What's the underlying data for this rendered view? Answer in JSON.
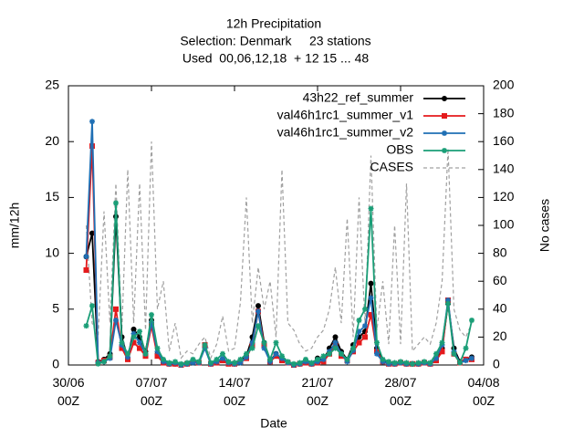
{
  "chart_data": {
    "type": "line",
    "title": "12h Precipitation",
    "subtitle": [
      "Selection: Denmark     23 stations",
      "Used  00,06,12,18  + 12 15 ... 48"
    ],
    "xlabel": "Date",
    "ylabel": "mm/12h",
    "y2label": "No cases",
    "xlim": [
      "30/06 00Z",
      "04/08 00Z"
    ],
    "xticks": [
      "30/06 00Z",
      "07/07 00Z",
      "14/07 00Z",
      "21/07 00Z",
      "28/07 00Z",
      "04/08 00Z"
    ],
    "ylim": [
      0,
      25
    ],
    "yticks": [
      0,
      5,
      10,
      15,
      20,
      25
    ],
    "y2lim": [
      0,
      200
    ],
    "y2ticks": [
      0,
      20,
      40,
      60,
      80,
      100,
      120,
      140,
      160,
      180,
      200
    ],
    "grid": false,
    "legend": "top-right",
    "x": [
      "30/06 00Z",
      "30/06 12Z",
      "01/07 00Z",
      "01/07 12Z",
      "02/07 00Z",
      "02/07 12Z",
      "03/07 00Z",
      "03/07 12Z",
      "04/07 00Z",
      "04/07 12Z",
      "05/07 00Z",
      "05/07 12Z",
      "06/07 00Z",
      "06/07 12Z",
      "07/07 00Z",
      "07/07 12Z",
      "08/07 00Z",
      "08/07 12Z",
      "09/07 00Z",
      "09/07 12Z",
      "10/07 00Z",
      "10/07 12Z",
      "11/07 00Z",
      "11/07 12Z",
      "12/07 00Z",
      "12/07 12Z",
      "13/07 00Z",
      "13/07 12Z",
      "14/07 00Z",
      "14/07 12Z",
      "15/07 00Z",
      "15/07 12Z",
      "16/07 00Z",
      "16/07 12Z",
      "17/07 00Z",
      "17/07 12Z",
      "18/07 00Z",
      "18/07 12Z",
      "19/07 00Z",
      "19/07 12Z",
      "20/07 00Z",
      "20/07 12Z",
      "21/07 00Z",
      "21/07 12Z",
      "22/07 00Z",
      "22/07 12Z",
      "23/07 00Z",
      "23/07 12Z",
      "24/07 00Z",
      "24/07 12Z",
      "25/07 00Z",
      "25/07 12Z",
      "26/07 00Z",
      "26/07 12Z",
      "27/07 00Z",
      "27/07 12Z",
      "28/07 00Z",
      "28/07 12Z",
      "29/07 00Z",
      "29/07 12Z",
      "30/07 00Z",
      "30/07 12Z",
      "31/07 00Z",
      "31/07 12Z",
      "01/08 00Z",
      "01/08 12Z",
      "02/08 00Z",
      "02/08 12Z",
      "03/08 00Z",
      "03/08 12Z"
    ],
    "series": [
      {
        "name": "43h22_ref_summer",
        "color": "#000000",
        "marker": "circle",
        "values": [
          null,
          null,
          null,
          9.7,
          11.8,
          0.3,
          0.5,
          1,
          13.3,
          2.5,
          0.6,
          3.2,
          2.5,
          1.2,
          4,
          1,
          0.3,
          0.1,
          0.1,
          0,
          0.1,
          0.2,
          0.2,
          1.6,
          0.1,
          0.2,
          0.5,
          0.2,
          0.1,
          0.3,
          0.8,
          2.5,
          5.3,
          2,
          0.4,
          1,
          0.5,
          0.2,
          0,
          0.1,
          0.3,
          0.1,
          0.6,
          0.4,
          1.5,
          2.5,
          1.2,
          0.5,
          1.8,
          2.5,
          3,
          7.3,
          1.5,
          0.4,
          0.2,
          0.1,
          0.2,
          0.1,
          0.1,
          0.1,
          0.2,
          0.1,
          0.5,
          1.5,
          5.5,
          1.5,
          0.3,
          0.5,
          0.7,
          null
        ]
      },
      {
        "name": "val46h1rc1_summer_v1",
        "color": "#e41a1c",
        "marker": "square",
        "values": [
          null,
          null,
          null,
          8.5,
          19.6,
          0.2,
          0.4,
          0.7,
          5,
          1.5,
          0.5,
          2,
          1.5,
          0.8,
          3.5,
          0.8,
          0.2,
          0.1,
          0.1,
          0,
          0.1,
          0.3,
          0.2,
          1.8,
          0.1,
          0.2,
          0.4,
          0.1,
          0.1,
          0.3,
          0.6,
          1.8,
          4.8,
          1.8,
          0.3,
          0.8,
          0.4,
          0.2,
          0,
          0.1,
          0.2,
          0.1,
          0.2,
          0.3,
          1,
          1.8,
          0.8,
          0.4,
          1.2,
          2,
          2.5,
          4.5,
          1.2,
          0.3,
          0.1,
          0.1,
          0.2,
          0.1,
          0.1,
          0.1,
          0.2,
          0.1,
          0.4,
          1.2,
          5.8,
          1,
          0.2,
          0.5,
          0.5,
          null
        ]
      },
      {
        "name": "val46h1rc1_summer_v2",
        "color": "#1f6fb4",
        "marker": "star",
        "values": [
          null,
          null,
          null,
          9.7,
          21.8,
          0.2,
          0.3,
          0.6,
          4,
          1.8,
          0.7,
          2.8,
          2,
          1,
          3.8,
          1.2,
          0.3,
          0.1,
          0.2,
          0,
          0.1,
          0.2,
          0.2,
          1.5,
          0.1,
          0.3,
          0.6,
          0.2,
          0.1,
          0.2,
          0.7,
          2,
          4.8,
          1.5,
          0.3,
          1,
          0.6,
          0.2,
          0,
          0.1,
          0.3,
          0.1,
          0.3,
          0.5,
          1.2,
          2,
          1,
          0.3,
          1.3,
          3,
          3.5,
          6,
          1,
          0.3,
          0.1,
          0.1,
          0.2,
          0.1,
          0.1,
          0.1,
          0.2,
          0.1,
          0.6,
          1.8,
          5.8,
          1.2,
          0.2,
          0.4,
          0.6,
          null
        ]
      },
      {
        "name": "OBS",
        "color": "#1a9e77",
        "marker": "star",
        "values": [
          null,
          null,
          null,
          3.5,
          5.3,
          0.1,
          0.3,
          0.8,
          14.5,
          2,
          1,
          2.5,
          3,
          1,
          4.5,
          1.5,
          0.5,
          0.2,
          0.3,
          0.1,
          0.2,
          0.5,
          0.3,
          1.8,
          0.2,
          0.5,
          1,
          0.3,
          0.2,
          0.5,
          1,
          1.5,
          3.5,
          2,
          0.5,
          2,
          0.8,
          0.3,
          0.1,
          0.2,
          0.5,
          0.2,
          0.5,
          0.8,
          1,
          1.5,
          1,
          0.5,
          1.5,
          4,
          5,
          14,
          2,
          0.5,
          0.3,
          0.2,
          0.3,
          0.2,
          0.1,
          0.2,
          0.3,
          0.2,
          1,
          2,
          5.5,
          1,
          0.2,
          1.5,
          4,
          null
        ]
      },
      {
        "name": "CASES",
        "color": "#a0a0a0",
        "axis": "y2",
        "dashed": true,
        "values": [
          null,
          null,
          null,
          100,
          30,
          20,
          110,
          30,
          130,
          25,
          140,
          30,
          130,
          25,
          160,
          40,
          60,
          10,
          30,
          5,
          10,
          8,
          15,
          20,
          5,
          15,
          35,
          10,
          12,
          45,
          120,
          30,
          70,
          40,
          60,
          20,
          140,
          30,
          25,
          15,
          10,
          12,
          20,
          25,
          40,
          70,
          30,
          105,
          20,
          120,
          30,
          150,
          25,
          60,
          15,
          100,
          15,
          130,
          10,
          15,
          20,
          15,
          30,
          60,
          155,
          40,
          25,
          20,
          30,
          null
        ]
      }
    ]
  }
}
